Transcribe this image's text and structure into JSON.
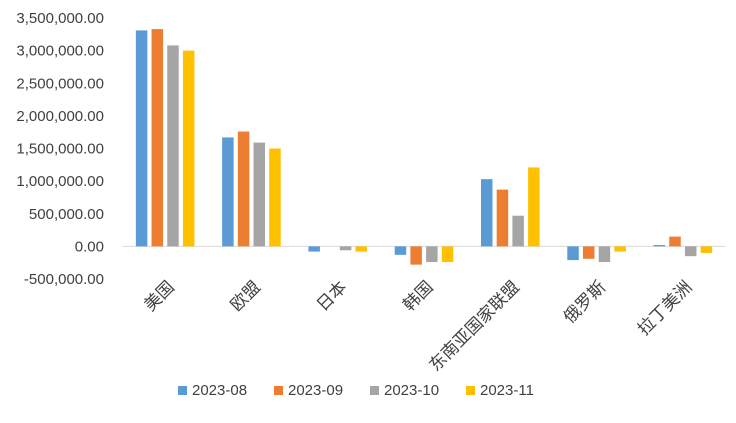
{
  "chart_data": {
    "type": "bar",
    "categories": [
      "美国",
      "欧盟",
      "日本",
      "韩国",
      "东南亚国家联盟",
      "俄罗斯",
      "拉丁美洲"
    ],
    "series": [
      {
        "name": "2023-08",
        "color": "#5B9BD5",
        "values": [
          3310000,
          1670000,
          -80000,
          -130000,
          1030000,
          -210000,
          20000
        ]
      },
      {
        "name": "2023-09",
        "color": "#ED7D31",
        "values": [
          3330000,
          1760000,
          0,
          -280000,
          870000,
          -190000,
          150000
        ]
      },
      {
        "name": "2023-10",
        "color": "#A5A5A5",
        "values": [
          3080000,
          1590000,
          -60000,
          -240000,
          470000,
          -240000,
          -150000
        ]
      },
      {
        "name": "2023-11",
        "color": "#FFC000",
        "values": [
          3000000,
          1500000,
          -80000,
          -240000,
          1210000,
          -80000,
          -100000
        ]
      }
    ],
    "ylim": [
      -500000,
      3500000
    ],
    "yticks": [
      "3,500,000.00",
      "3,000,000.00",
      "2,500,000.00",
      "2,000,000.00",
      "1,500,000.00",
      "1,000,000.00",
      "500,000.00",
      "0.00",
      "-500,000.00"
    ],
    "ytick_values": [
      3500000,
      3000000,
      2500000,
      2000000,
      1500000,
      1000000,
      500000,
      0,
      -500000
    ],
    "grid": false,
    "legend_position": "bottom"
  }
}
